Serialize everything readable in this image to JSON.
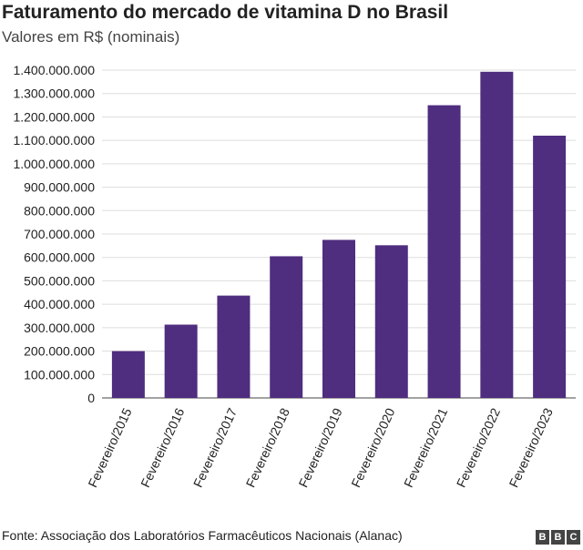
{
  "header": {
    "title": "Faturamento do mercado de vitamina D no Brasil",
    "subtitle": "Valores em R$ (nominais)"
  },
  "footer": {
    "source": "Fonte: Associação dos Laboratórios Farmacêuticos Nacionais (Alanac)",
    "logo_letters": [
      "B",
      "B",
      "C"
    ]
  },
  "chart_data": {
    "type": "bar",
    "title": "Faturamento do mercado de vitamina D no Brasil",
    "subtitle": "Valores em R$ (nominais)",
    "xlabel": "",
    "ylabel": "",
    "categories": [
      "Fevereiro/2015",
      "Fevereiro/2016",
      "Fevereiro/2017",
      "Fevereiro/2018",
      "Fevereiro/2019",
      "Fevereiro/2020",
      "Fevereiro/2021",
      "Fevereiro/2022",
      "Fevereiro/2023"
    ],
    "values": [
      200000000,
      313000000,
      437000000,
      605000000,
      675000000,
      652000000,
      1250000000,
      1393000000,
      1120000000
    ],
    "ylim": [
      0,
      1400000000
    ],
    "yticks": [
      0,
      100000000,
      200000000,
      300000000,
      400000000,
      500000000,
      600000000,
      700000000,
      800000000,
      900000000,
      1000000000,
      1100000000,
      1200000000,
      1300000000,
      1400000000
    ],
    "ytick_labels": [
      "0",
      "100.000.000",
      "200.000.000",
      "300.000.000",
      "400.000.000",
      "500.000.000",
      "600.000.000",
      "700.000.000",
      "800.000.000",
      "900.000.000",
      "1.000.000.000",
      "1.100.000.000",
      "1.200.000.000",
      "1.300.000.000",
      "1.400.000.000"
    ],
    "grid": true,
    "bar_color": "#4f2d7f",
    "grid_color": "#dddddd",
    "axis_color": "#444444"
  }
}
